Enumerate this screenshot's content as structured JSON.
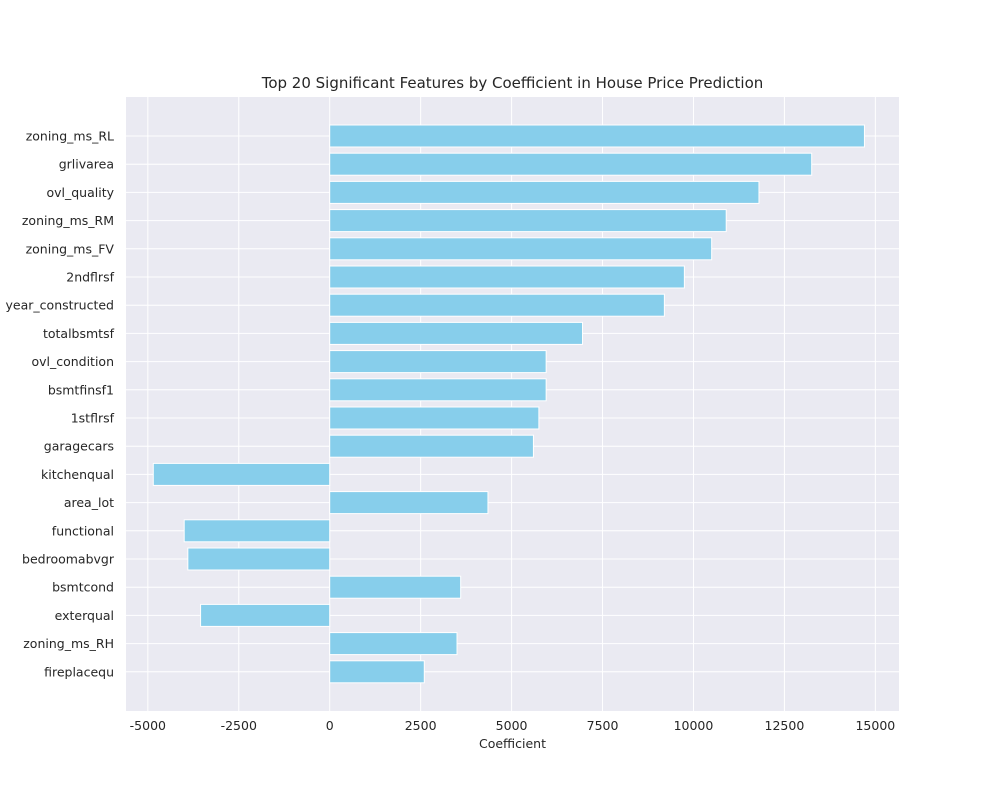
{
  "chart_data": {
    "type": "bar",
    "orientation": "horizontal",
    "title": "Top 20 Significant Features by Coefficient in House Price Prediction",
    "xlabel": "Coefficient",
    "ylabel": "",
    "xlim": [
      -5600,
      15650
    ],
    "xticks": [
      -5000,
      -2500,
      0,
      2500,
      5000,
      7500,
      10000,
      12500,
      15000
    ],
    "grid": true,
    "categories": [
      "zoning_ms_RL",
      "grlivarea",
      "ovl_quality",
      "zoning_ms_RM",
      "zoning_ms_FV",
      "2ndflrsf",
      "year_constructed",
      "totalbsmtsf",
      "ovl_condition",
      "bsmtfinsf1",
      "1stflrsf",
      "garagecars",
      "kitchenqual",
      "area_lot",
      "functional",
      "bedroomabvgr",
      "bsmtcond",
      "exterqual",
      "zoning_ms_RH",
      "fireplacequ"
    ],
    "values": [
      14700,
      13250,
      11800,
      10900,
      10500,
      9750,
      9200,
      6950,
      5950,
      5950,
      5750,
      5600,
      -4850,
      4350,
      -4000,
      -3900,
      3600,
      -3550,
      3500,
      2600
    ],
    "colors": {
      "bar": "#87ceeb",
      "plot_bg": "#eaeaf2",
      "grid": "#ffffff",
      "text": "#262626"
    }
  }
}
